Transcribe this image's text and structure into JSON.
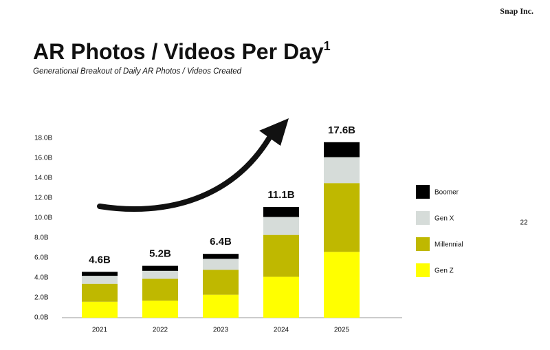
{
  "brand": "Snap Inc.",
  "page_number": "22",
  "chart_data": {
    "type": "stacked_bar",
    "title": "AR Photos / Videos Per Day",
    "title_footnote": "1",
    "subtitle": "Generational Breakout of Daily AR Photos / Videos Created",
    "categories": [
      "2021",
      "2022",
      "2023",
      "2024",
      "2025"
    ],
    "series": [
      {
        "name": "Gen Z",
        "color": "#ffff00",
        "values": [
          1.6,
          1.7,
          2.3,
          4.1,
          6.6
        ]
      },
      {
        "name": "Millennial",
        "color": "#bfb800",
        "values": [
          1.8,
          2.2,
          2.5,
          4.2,
          6.9
        ]
      },
      {
        "name": "Gen X",
        "color": "#d6dcd9",
        "values": [
          0.8,
          0.8,
          1.1,
          1.8,
          2.6
        ]
      },
      {
        "name": "Boomer",
        "color": "#000000",
        "values": [
          0.4,
          0.5,
          0.5,
          1.0,
          1.5
        ]
      }
    ],
    "totals": {
      "values": [
        4.6,
        5.2,
        6.4,
        11.1,
        17.6
      ],
      "value_labels": [
        "4.6B",
        "5.2B",
        "6.4B",
        "11.1B",
        "17.6B"
      ]
    },
    "ylim": [
      0,
      18
    ],
    "yticks": [
      {
        "value": 0,
        "label": "0.0B"
      },
      {
        "value": 2,
        "label": "2.0B"
      },
      {
        "value": 4,
        "label": "4.0B"
      },
      {
        "value": 6,
        "label": "6.0B"
      },
      {
        "value": 8,
        "label": "8.0B"
      },
      {
        "value": 10,
        "label": "10.0B"
      },
      {
        "value": 12,
        "label": "12.0B"
      },
      {
        "value": 14,
        "label": "14.0B"
      },
      {
        "value": 16,
        "label": "16.0B"
      },
      {
        "value": 18,
        "label": "18.0B"
      }
    ],
    "legend": "right"
  }
}
